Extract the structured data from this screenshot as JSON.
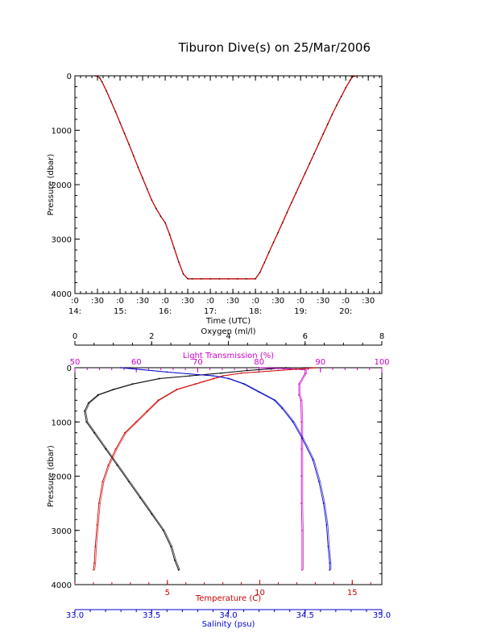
{
  "title": "Tiburon Dive(s) on 25/Mar/2006",
  "chart_data": [
    {
      "type": "line",
      "name": "pressure-vs-time",
      "xlabel": "Time (UTC)",
      "ylabel": "Pressure (dbar)",
      "x_unit": "hours UTC",
      "xlim": [
        14.0,
        20.8
      ],
      "ylim": [
        4000,
        0
      ],
      "y_inverted": true,
      "x_ticks_top_row": [
        ":0",
        ":30",
        ":0",
        ":30",
        ":0",
        ":30",
        ":0",
        ":30",
        ":0",
        ":30",
        ":0",
        ":30",
        ":0",
        ":30"
      ],
      "x_ticks_bottom_row": [
        "14:",
        "15:",
        "16:",
        "17:",
        "18:",
        "19:",
        "20:"
      ],
      "y_ticks": [
        "0",
        "1000",
        "2000",
        "3000",
        "4000"
      ],
      "series": [
        {
          "color": "#cc0000",
          "x": [
            14.45,
            14.5,
            14.55,
            14.6,
            14.7,
            14.8,
            14.9,
            15.0,
            15.1,
            15.2,
            15.3,
            15.4,
            15.5,
            15.6,
            15.7,
            15.8,
            15.9,
            16.0,
            16.1,
            16.2,
            16.3,
            16.4,
            16.5,
            16.6,
            16.8,
            17.0,
            17.2,
            17.4,
            17.6,
            17.8,
            18.0,
            18.1,
            18.2,
            18.3,
            18.4,
            18.5,
            18.6,
            18.7,
            18.8,
            18.9,
            19.0,
            19.1,
            19.2,
            19.3,
            19.4,
            19.5,
            19.6,
            19.7,
            19.8,
            19.9,
            20.0,
            20.1,
            20.15,
            20.2,
            20.25
          ],
          "y": [
            0,
            10,
            40,
            110,
            280,
            470,
            660,
            860,
            1060,
            1260,
            1470,
            1680,
            1880,
            2080,
            2280,
            2440,
            2580,
            2700,
            2920,
            3170,
            3420,
            3640,
            3730,
            3730,
            3730,
            3730,
            3730,
            3730,
            3730,
            3730,
            3730,
            3610,
            3430,
            3240,
            3060,
            2880,
            2700,
            2510,
            2330,
            2150,
            1970,
            1790,
            1610,
            1430,
            1250,
            1070,
            890,
            710,
            540,
            380,
            220,
            80,
            20,
            5,
            0
          ]
        }
      ]
    },
    {
      "type": "line",
      "name": "depth-profiles",
      "ylabel": "Pressure (dbar)",
      "ylim": [
        4000,
        0
      ],
      "y_inverted": true,
      "y_ticks": [
        "0",
        "1000",
        "2000",
        "3000",
        "4000"
      ],
      "axes": {
        "oxygen": {
          "label": "Oxygen (ml/l)",
          "position": "top",
          "range": [
            0,
            8
          ],
          "ticks": [
            "0",
            "2",
            "4",
            "6",
            "8"
          ],
          "color": "#000000"
        },
        "light_transmission": {
          "label": "Light Transmission (%)",
          "position": "top",
          "range": [
            50,
            100
          ],
          "ticks": [
            "50",
            "60",
            "70",
            "80",
            "90",
            "100"
          ],
          "color": "#cc00cc"
        },
        "temperature": {
          "label": "Temperature (C)",
          "position": "bottom",
          "range": [
            0,
            16.6
          ],
          "ticks": [
            "5",
            "10",
            "15"
          ],
          "color": "#cc0000"
        },
        "salinity": {
          "label": "Salinity (psu)",
          "position": "bottom",
          "range": [
            33.0,
            35.0
          ],
          "ticks": [
            "33.0",
            "33.5",
            "34.0",
            "34.5",
            "35.0"
          ],
          "color": "#0000cc"
        }
      },
      "series": [
        {
          "axis": "oxygen",
          "color": "#000000",
          "x": [
            5.5,
            4.5,
            3.8,
            3.0,
            2.2,
            1.5,
            1.0,
            0.6,
            0.35,
            0.25,
            0.3,
            0.5,
            0.8,
            1.1,
            1.4,
            1.7,
            2.0,
            2.3,
            2.5,
            2.6,
            2.7
          ],
          "y": [
            0,
            50,
            100,
            150,
            200,
            300,
            400,
            500,
            650,
            800,
            1000,
            1200,
            1500,
            1800,
            2100,
            2400,
            2700,
            3000,
            3300,
            3550,
            3730
          ]
        },
        {
          "axis": "light_transmission",
          "color": "#cc00cc",
          "x": [
            80,
            85,
            87.5,
            87.5,
            86.5,
            86.5,
            86.8,
            86.9,
            86.9,
            86.9,
            86.9,
            87.0,
            87.0
          ],
          "y": [
            0,
            20,
            40,
            100,
            300,
            500,
            600,
            1000,
            1500,
            2000,
            2500,
            3000,
            3730
          ]
        },
        {
          "axis": "temperature",
          "color": "#cc0000",
          "x": [
            13.0,
            11.0,
            9.0,
            8.0,
            7.5,
            6.5,
            5.5,
            4.5,
            3.9,
            3.3,
            2.7,
            2.2,
            1.8,
            1.5,
            1.3,
            1.2,
            1.1,
            1.05,
            1.0
          ],
          "y": [
            0,
            50,
            100,
            150,
            200,
            300,
            400,
            600,
            800,
            1000,
            1200,
            1500,
            1800,
            2100,
            2500,
            2900,
            3300,
            3600,
            3730
          ]
        },
        {
          "axis": "salinity",
          "color": "#0000cc",
          "x": [
            33.3,
            33.6,
            33.9,
            34.0,
            34.1,
            34.2,
            34.3,
            34.35,
            34.42,
            34.48,
            34.55,
            34.59,
            34.62,
            34.64,
            34.65,
            34.66,
            34.66
          ],
          "y": [
            0,
            80,
            150,
            200,
            300,
            450,
            600,
            750,
            1000,
            1300,
            1700,
            2100,
            2500,
            2900,
            3300,
            3600,
            3730
          ]
        }
      ]
    }
  ]
}
